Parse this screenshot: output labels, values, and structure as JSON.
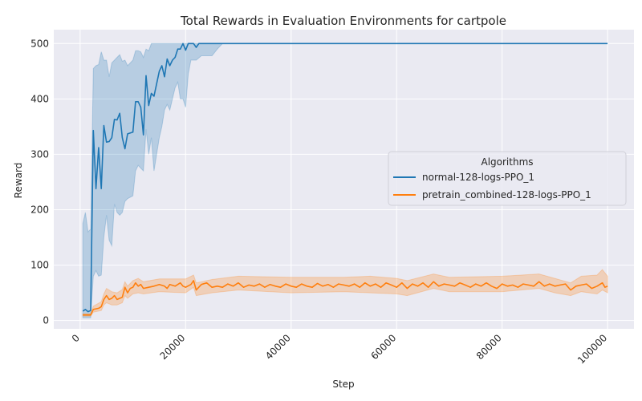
{
  "chart_data": {
    "type": "line",
    "title": "Total Rewards in Evaluation Environments for cartpole",
    "xlabel": "Step",
    "ylabel": "Reward",
    "xlim": [
      -5000,
      105000
    ],
    "ylim": [
      -15,
      525
    ],
    "x_ticks": [
      0,
      20000,
      40000,
      60000,
      80000,
      100000
    ],
    "y_ticks": [
      0,
      100,
      200,
      300,
      400,
      500
    ],
    "grid": true,
    "legend": {
      "title": "Algorithms",
      "placement": "center-right"
    },
    "series": [
      {
        "name": "normal-128-logs-PPO_1",
        "color": "#1f77b4",
        "band_color": "#1f77b4",
        "points": [
          [
            500,
            17
          ],
          [
            1000,
            20
          ],
          [
            1500,
            16
          ],
          [
            2000,
            18
          ],
          [
            2500,
            343
          ],
          [
            3000,
            238
          ],
          [
            3500,
            312
          ],
          [
            4000,
            238
          ],
          [
            4500,
            352
          ],
          [
            5000,
            322
          ],
          [
            5500,
            323
          ],
          [
            6000,
            330
          ],
          [
            6500,
            363
          ],
          [
            7000,
            362
          ],
          [
            7500,
            374
          ],
          [
            8000,
            330
          ],
          [
            8500,
            310
          ],
          [
            9000,
            337
          ],
          [
            10000,
            340
          ],
          [
            10500,
            395
          ],
          [
            11000,
            395
          ],
          [
            11500,
            385
          ],
          [
            12000,
            335
          ],
          [
            12500,
            442
          ],
          [
            13000,
            388
          ],
          [
            13500,
            410
          ],
          [
            14000,
            405
          ],
          [
            15000,
            450
          ],
          [
            15500,
            460
          ],
          [
            16000,
            440
          ],
          [
            16500,
            472
          ],
          [
            17000,
            460
          ],
          [
            17500,
            470
          ],
          [
            18000,
            475
          ],
          [
            18500,
            490
          ],
          [
            19000,
            490
          ],
          [
            19500,
            500
          ],
          [
            20000,
            488
          ],
          [
            20500,
            500
          ],
          [
            21000,
            500
          ],
          [
            21500,
            500
          ],
          [
            22000,
            493
          ],
          [
            22500,
            500
          ],
          [
            25000,
            500
          ],
          [
            30000,
            500
          ],
          [
            40000,
            500
          ],
          [
            50000,
            500
          ],
          [
            60000,
            500
          ],
          [
            70000,
            500
          ],
          [
            80000,
            500
          ],
          [
            90000,
            500
          ],
          [
            100000,
            500
          ]
        ],
        "band": [
          [
            500,
            5,
            175
          ],
          [
            1000,
            5,
            195
          ],
          [
            1500,
            5,
            160
          ],
          [
            2000,
            5,
            165
          ],
          [
            2500,
            80,
            455
          ],
          [
            3000,
            90,
            460
          ],
          [
            3500,
            80,
            462
          ],
          [
            4000,
            82,
            485
          ],
          [
            4500,
            150,
            470
          ],
          [
            5000,
            190,
            470
          ],
          [
            5500,
            145,
            440
          ],
          [
            6000,
            135,
            465
          ],
          [
            6500,
            210,
            470
          ],
          [
            7000,
            195,
            475
          ],
          [
            7500,
            190,
            480
          ],
          [
            8000,
            195,
            468
          ],
          [
            8500,
            215,
            470
          ],
          [
            9000,
            220,
            460
          ],
          [
            10000,
            225,
            470
          ],
          [
            10500,
            270,
            487
          ],
          [
            11000,
            280,
            487
          ],
          [
            11500,
            275,
            485
          ],
          [
            12000,
            270,
            475
          ],
          [
            12500,
            345,
            490
          ],
          [
            13000,
            300,
            487
          ],
          [
            13500,
            330,
            500
          ],
          [
            14000,
            270,
            500
          ],
          [
            15000,
            330,
            500
          ],
          [
            15500,
            350,
            500
          ],
          [
            16000,
            380,
            500
          ],
          [
            16500,
            390,
            500
          ],
          [
            17000,
            380,
            500
          ],
          [
            17500,
            400,
            500
          ],
          [
            18000,
            420,
            500
          ],
          [
            18500,
            430,
            500
          ],
          [
            19000,
            400,
            500
          ],
          [
            19500,
            400,
            500
          ],
          [
            20000,
            385,
            500
          ],
          [
            20500,
            445,
            500
          ],
          [
            21000,
            470,
            500
          ],
          [
            22000,
            470,
            500
          ],
          [
            23000,
            478,
            500
          ],
          [
            24000,
            478,
            500
          ],
          [
            25000,
            478,
            500
          ],
          [
            26000,
            490,
            500
          ],
          [
            27000,
            500,
            500
          ],
          [
            100000,
            500,
            500
          ]
        ]
      },
      {
        "name": "pretrain_combined-128-logs-PPO_1",
        "color": "#ff7f0e",
        "band_color": "#ff7f0e",
        "points": [
          [
            500,
            10
          ],
          [
            1000,
            10
          ],
          [
            1500,
            10
          ],
          [
            2000,
            10
          ],
          [
            2500,
            20
          ],
          [
            3000,
            21
          ],
          [
            3500,
            22
          ],
          [
            4000,
            25
          ],
          [
            4500,
            38
          ],
          [
            5000,
            45
          ],
          [
            5500,
            38
          ],
          [
            6000,
            40
          ],
          [
            6500,
            45
          ],
          [
            7000,
            38
          ],
          [
            7500,
            40
          ],
          [
            8000,
            42
          ],
          [
            8500,
            60
          ],
          [
            9000,
            50
          ],
          [
            9500,
            58
          ],
          [
            10000,
            60
          ],
          [
            10500,
            68
          ],
          [
            11000,
            62
          ],
          [
            11500,
            65
          ],
          [
            12000,
            58
          ],
          [
            13000,
            60
          ],
          [
            14000,
            62
          ],
          [
            15000,
            65
          ],
          [
            16000,
            62
          ],
          [
            16500,
            58
          ],
          [
            17000,
            65
          ],
          [
            18000,
            62
          ],
          [
            19000,
            68
          ],
          [
            19500,
            62
          ],
          [
            20000,
            60
          ],
          [
            21000,
            65
          ],
          [
            21500,
            72
          ],
          [
            22000,
            55
          ],
          [
            23000,
            65
          ],
          [
            24000,
            68
          ],
          [
            25000,
            60
          ],
          [
            26000,
            62
          ],
          [
            27000,
            60
          ],
          [
            28000,
            66
          ],
          [
            29000,
            62
          ],
          [
            30000,
            68
          ],
          [
            31000,
            60
          ],
          [
            32000,
            64
          ],
          [
            33000,
            62
          ],
          [
            34000,
            66
          ],
          [
            35000,
            60
          ],
          [
            36000,
            65
          ],
          [
            37000,
            62
          ],
          [
            38000,
            60
          ],
          [
            39000,
            66
          ],
          [
            40000,
            62
          ],
          [
            41000,
            60
          ],
          [
            42000,
            66
          ],
          [
            43000,
            62
          ],
          [
            44000,
            60
          ],
          [
            45000,
            67
          ],
          [
            46000,
            62
          ],
          [
            47000,
            65
          ],
          [
            48000,
            60
          ],
          [
            49000,
            66
          ],
          [
            50000,
            64
          ],
          [
            51000,
            62
          ],
          [
            52000,
            66
          ],
          [
            53000,
            60
          ],
          [
            54000,
            68
          ],
          [
            55000,
            62
          ],
          [
            56000,
            66
          ],
          [
            57000,
            60
          ],
          [
            58000,
            68
          ],
          [
            59000,
            64
          ],
          [
            60000,
            60
          ],
          [
            61000,
            68
          ],
          [
            62000,
            58
          ],
          [
            63000,
            66
          ],
          [
            64000,
            62
          ],
          [
            65000,
            68
          ],
          [
            66000,
            60
          ],
          [
            67000,
            70
          ],
          [
            68000,
            62
          ],
          [
            69000,
            66
          ],
          [
            70000,
            64
          ],
          [
            71000,
            62
          ],
          [
            72000,
            68
          ],
          [
            73000,
            64
          ],
          [
            74000,
            60
          ],
          [
            75000,
            66
          ],
          [
            76000,
            62
          ],
          [
            77000,
            68
          ],
          [
            78000,
            62
          ],
          [
            79000,
            58
          ],
          [
            80000,
            66
          ],
          [
            81000,
            62
          ],
          [
            82000,
            64
          ],
          [
            83000,
            60
          ],
          [
            84000,
            66
          ],
          [
            85000,
            64
          ],
          [
            86000,
            62
          ],
          [
            87000,
            70
          ],
          [
            88000,
            62
          ],
          [
            89000,
            66
          ],
          [
            90000,
            62
          ],
          [
            91000,
            64
          ],
          [
            92000,
            66
          ],
          [
            93000,
            55
          ],
          [
            94000,
            62
          ],
          [
            95000,
            64
          ],
          [
            96000,
            66
          ],
          [
            97000,
            58
          ],
          [
            98000,
            62
          ],
          [
            99000,
            68
          ],
          [
            99500,
            60
          ],
          [
            100000,
            62
          ]
        ],
        "band": [
          [
            500,
            8,
            12
          ],
          [
            2000,
            8,
            12
          ],
          [
            2500,
            15,
            26
          ],
          [
            4000,
            18,
            34
          ],
          [
            4500,
            28,
            48
          ],
          [
            5000,
            32,
            58
          ],
          [
            6000,
            28,
            52
          ],
          [
            7000,
            28,
            50
          ],
          [
            8000,
            32,
            56
          ],
          [
            8500,
            45,
            70
          ],
          [
            9000,
            40,
            62
          ],
          [
            10000,
            48,
            72
          ],
          [
            11000,
            50,
            76
          ],
          [
            12000,
            48,
            70
          ],
          [
            15000,
            52,
            75
          ],
          [
            20000,
            50,
            75
          ],
          [
            21500,
            60,
            82
          ],
          [
            22000,
            45,
            68
          ],
          [
            25000,
            50,
            74
          ],
          [
            30000,
            55,
            80
          ],
          [
            40000,
            50,
            78
          ],
          [
            50000,
            52,
            78
          ],
          [
            55000,
            50,
            80
          ],
          [
            60000,
            48,
            76
          ],
          [
            62000,
            45,
            72
          ],
          [
            67000,
            58,
            84
          ],
          [
            70000,
            52,
            78
          ],
          [
            80000,
            52,
            80
          ],
          [
            87000,
            58,
            84
          ],
          [
            90000,
            50,
            76
          ],
          [
            93000,
            45,
            68
          ],
          [
            95000,
            52,
            80
          ],
          [
            98000,
            48,
            82
          ],
          [
            99000,
            55,
            92
          ],
          [
            100000,
            50,
            80
          ]
        ]
      }
    ]
  }
}
